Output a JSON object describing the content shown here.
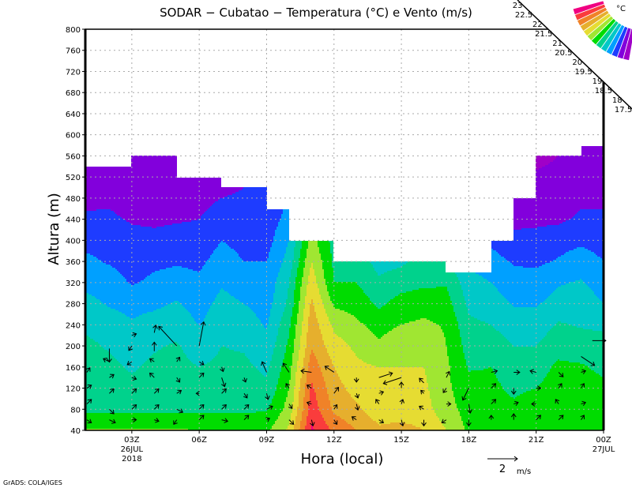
{
  "chart_data": {
    "type": "heatmap",
    "title": "SODAR − Cubatao − Temperatura (°C) e Vento (m/s)",
    "xlabel": "Hora (local)",
    "ylabel": "Altura (m)",
    "xlim_hours": [
      0.93,
      24
    ],
    "ylim": [
      40,
      800
    ],
    "y_ticks": [
      40,
      80,
      120,
      160,
      200,
      240,
      280,
      320,
      360,
      400,
      440,
      480,
      520,
      560,
      600,
      640,
      680,
      720,
      760,
      800
    ],
    "x_ticks": [
      {
        "hour": 3,
        "label": "03Z",
        "sub": [
          "26JUL",
          "2018"
        ]
      },
      {
        "hour": 6,
        "label": "06Z",
        "sub": []
      },
      {
        "hour": 9,
        "label": "09Z",
        "sub": []
      },
      {
        "hour": 12,
        "label": "12Z",
        "sub": []
      },
      {
        "hour": 15,
        "label": "15Z",
        "sub": []
      },
      {
        "hour": 18,
        "label": "18Z",
        "sub": []
      },
      {
        "hour": 21,
        "label": "21Z",
        "sub": []
      },
      {
        "hour": 24,
        "label": "00Z",
        "sub": [
          "27JUL"
        ]
      }
    ],
    "grid": true,
    "units": "°C",
    "levels": [
      17.5,
      18,
      18.5,
      19,
      19.5,
      20,
      20.5,
      21,
      21.5,
      22,
      22.5,
      23
    ],
    "level_labels": [
      "23",
      "22.5",
      "22",
      "21.5",
      "21",
      "20.5",
      "20",
      "19.5",
      "19",
      "18.5",
      "18",
      "17.5"
    ],
    "colors": [
      "#a000c8",
      "#8200dc",
      "#1e3cff",
      "#00a0ff",
      "#00c8c8",
      "#00d28c",
      "#00dc00",
      "#a0e632",
      "#e6dc32",
      "#e6af2d",
      "#f08228",
      "#fa3c3c",
      "#f00082"
    ],
    "heights": [
      40,
      80,
      120,
      160,
      200,
      240,
      280,
      320,
      360,
      400,
      440,
      480,
      520,
      560
    ],
    "hours": [
      1,
      2,
      3,
      4,
      5,
      6,
      7,
      8,
      9,
      10,
      11,
      12,
      13,
      14,
      15,
      16,
      17,
      18,
      19,
      20,
      21,
      22,
      23,
      24
    ],
    "temperature": [
      [
        20.55,
        19.9,
        19.8,
        19.7,
        19.6,
        19.4,
        19.15,
        18.85,
        18.6,
        18.35,
        18.1,
        17.85,
        17.7,
        17.6
      ],
      [
        20.55,
        19.9,
        19.75,
        19.6,
        19.45,
        19.25,
        18.95,
        18.75,
        18.45,
        18.3,
        18.1,
        17.9,
        17.7,
        17.6
      ],
      [
        20.55,
        19.9,
        19.6,
        19.45,
        19.25,
        19.05,
        18.85,
        18.45,
        18.3,
        18.15,
        17.95,
        17.7,
        17.6,
        17.5
      ],
      [
        20.55,
        19.9,
        19.7,
        19.6,
        19.45,
        19.2,
        18.9,
        18.6,
        18.4,
        18.15,
        17.9,
        17.8,
        17.7,
        17.6
      ],
      [
        20.55,
        19.9,
        19.75,
        19.65,
        19.55,
        19.3,
        19.05,
        18.7,
        18.45,
        18.2,
        17.95,
        17.7,
        17.6,
        17.5
      ],
      [
        20.5,
        19.9,
        19.7,
        19.5,
        19.25,
        18.98,
        18.8,
        18.6,
        18.4,
        18.2,
        18.0,
        17.85,
        17.7,
        17.6
      ],
      [
        20.5,
        19.9,
        19.75,
        19.6,
        19.5,
        19.3,
        19.15,
        18.95,
        18.7,
        18.5,
        18.25,
        18.0,
        17.85,
        17.8
      ],
      [
        20.5,
        19.9,
        19.75,
        19.6,
        19.45,
        19.25,
        19.0,
        18.75,
        18.5,
        18.35,
        18.2,
        18.05,
        17.95,
        17.9
      ],
      [
        20.4,
        19.95,
        19.6,
        19.4,
        19.15,
        18.95,
        18.8,
        18.65,
        18.5,
        18.3,
        18.2,
        18.1,
        18.0,
        18.0
      ],
      [
        21.1,
        20.7,
        20.5,
        20.3,
        20.1,
        19.9,
        19.6,
        19.5,
        19.2,
        19.0,
        18.7,
        18.5,
        18.4,
        18.3
      ],
      [
        23.1,
        22.8,
        22.6,
        22.3,
        21.95,
        21.8,
        21.6,
        21.3,
        21.0,
        20.7,
        20.5,
        20.3,
        20.1,
        20.0
      ],
      [
        22.4,
        21.9,
        21.7,
        21.5,
        21.2,
        20.9,
        20.4,
        20.0,
        19.9,
        19.8,
        19.7,
        19.6,
        19.5,
        19.5
      ],
      [
        22.0,
        21.6,
        21.3,
        21.1,
        20.9,
        20.6,
        20.3,
        20.0,
        19.8,
        19.7,
        19.6,
        19.5,
        19.4,
        19.4
      ],
      [
        21.6,
        21.2,
        21.1,
        21.0,
        20.6,
        20.3,
        19.9,
        19.6,
        19.3,
        19.2,
        19.1,
        19.0,
        19.0,
        19.0
      ],
      [
        21.7,
        21.2,
        21.1,
        21.0,
        20.9,
        20.5,
        20.2,
        19.8,
        19.4,
        19.1,
        19.0,
        19.0,
        19.0,
        19.0
      ],
      [
        21.5,
        21.2,
        21.1,
        21.0,
        20.9,
        20.6,
        20.3,
        19.9,
        19.7,
        19.5,
        19.3,
        19.2,
        19.1,
        19.0
      ],
      [
        21.0,
        20.7,
        20.6,
        20.6,
        20.5,
        20.45,
        20.2,
        19.95,
        19.6,
        19.3,
        19.1,
        19.0,
        18.9,
        18.8
      ],
      [
        20.4,
        20.3,
        20.2,
        19.95,
        19.8,
        19.6,
        19.4,
        19.2,
        18.9,
        18.5,
        18.3,
        18.1,
        18.0,
        17.9
      ],
      [
        20.3,
        20.2,
        20.1,
        20.0,
        19.7,
        19.5,
        19.25,
        19.0,
        18.7,
        18.4,
        18.0,
        17.8,
        17.6,
        17.5
      ],
      [
        20.4,
        20.1,
        19.9,
        19.8,
        19.5,
        19.3,
        18.95,
        18.7,
        18.45,
        18.1,
        17.9,
        17.7,
        17.5,
        17.4
      ],
      [
        20.5,
        20.3,
        20.0,
        19.8,
        19.5,
        19.25,
        18.95,
        18.7,
        18.4,
        18.15,
        17.9,
        17.75,
        17.55,
        17.4
      ],
      [
        20.5,
        20.3,
        20.2,
        20.1,
        19.8,
        19.55,
        19.2,
        18.95,
        18.55,
        18.3,
        17.9,
        17.7,
        17.6,
        17.5
      ],
      [
        20.5,
        20.3,
        20.2,
        20.05,
        19.75,
        19.45,
        19.3,
        19.05,
        18.75,
        18.4,
        18.1,
        17.9,
        17.7,
        17.6
      ],
      [
        20.4,
        20.2,
        20.1,
        19.9,
        19.7,
        19.4,
        19.0,
        18.75,
        18.5,
        18.3,
        18.1,
        17.9,
        17.7,
        17.6
      ]
    ],
    "data_top_by_hour_block": [
      540,
      540,
      560,
      560,
      520,
      520,
      500,
      500,
      460,
      400,
      400,
      360,
      360,
      360,
      360,
      360,
      340,
      340,
      400,
      480,
      560,
      560,
      580
    ],
    "wind_vectors_hour_height_u_v": [
      [
        1,
        60,
        0.3,
        -0.2
      ],
      [
        1,
        90,
        0.3,
        0.3
      ],
      [
        1,
        120,
        0.3,
        0.2
      ],
      [
        1,
        150,
        0.2,
        0.3
      ],
      [
        2,
        60,
        0.4,
        -0.2
      ],
      [
        2,
        80,
        0.3,
        -0.3
      ],
      [
        2,
        110,
        0.3,
        0.3
      ],
      [
        2,
        140,
        0.3,
        0.2
      ],
      [
        2,
        170,
        -0.4,
        0.2
      ],
      [
        2,
        195,
        0,
        -0.9
      ],
      [
        3,
        60,
        0.3,
        0
      ],
      [
        3,
        80,
        0.3,
        0.3
      ],
      [
        3,
        110,
        0.3,
        0.3
      ],
      [
        3,
        140,
        0.3,
        -0.1
      ],
      [
        3,
        170,
        -0.3,
        -0.2
      ],
      [
        3,
        200,
        -0.2,
        -0.3
      ],
      [
        3,
        220,
        0.3,
        0.1
      ],
      [
        4,
        60,
        0.3,
        -0.1
      ],
      [
        4,
        80,
        0.3,
        0.3
      ],
      [
        4,
        110,
        0.3,
        0.3
      ],
      [
        4,
        140,
        -0.3,
        0.3
      ],
      [
        4,
        170,
        -0.3,
        0.2
      ],
      [
        4,
        190,
        0,
        0.6
      ],
      [
        4,
        225,
        0.1,
        0.5
      ],
      [
        5,
        60,
        -0.2,
        -0.3
      ],
      [
        5,
        80,
        0.4,
        -0.2
      ],
      [
        5,
        110,
        0.3,
        0.2
      ],
      [
        5,
        140,
        0.2,
        -0.3
      ],
      [
        5,
        170,
        0.2,
        0.3
      ],
      [
        5,
        200,
        -1.2,
        1.3
      ],
      [
        6,
        60,
        0.3,
        0.3
      ],
      [
        6,
        80,
        0.3,
        0.3
      ],
      [
        6,
        110,
        -0.2,
        0
      ],
      [
        6,
        140,
        0.3,
        0.3
      ],
      [
        6,
        170,
        0.3,
        -0.2
      ],
      [
        6,
        200,
        0.3,
        1.6
      ],
      [
        7,
        60,
        0.4,
        -0.1
      ],
      [
        7,
        80,
        0.3,
        0.3
      ],
      [
        7,
        110,
        0.3,
        0.3
      ],
      [
        7,
        140,
        0.2,
        -0.6
      ],
      [
        7,
        160,
        0.1,
        -0.3
      ],
      [
        8,
        60,
        0.3,
        0.3
      ],
      [
        8,
        80,
        0.3,
        0.3
      ],
      [
        8,
        110,
        0.2,
        -0.3
      ],
      [
        8,
        140,
        0.1,
        -0.3
      ],
      [
        9,
        60,
        0.2,
        0.1
      ],
      [
        9,
        80,
        0.4,
        0.2
      ],
      [
        9,
        110,
        0.1,
        -0.4
      ],
      [
        9,
        150,
        -0.3,
        0.7
      ],
      [
        10,
        60,
        0.3,
        -0.3
      ],
      [
        10,
        90,
        0.2,
        -0.3
      ],
      [
        10,
        120,
        -0.2,
        0.3
      ],
      [
        10,
        150,
        -0.4,
        0.6
      ],
      [
        11,
        60,
        0.1,
        -0.4
      ],
      [
        11,
        90,
        -0.3,
        0.1
      ],
      [
        11,
        120,
        -0.3,
        0.2
      ],
      [
        11,
        150,
        -0.7,
        0.1
      ],
      [
        12,
        60,
        0.2,
        -0.3
      ],
      [
        12,
        80,
        0.2,
        0.3
      ],
      [
        12,
        110,
        0.3,
        0.4
      ],
      [
        12,
        150,
        -0.6,
        0.4
      ],
      [
        13,
        60,
        -0.3,
        0.2
      ],
      [
        13,
        90,
        0.1,
        -0.4
      ],
      [
        13,
        110,
        0.1,
        -0.3
      ],
      [
        13,
        140,
        0,
        -0.3
      ],
      [
        14,
        60,
        0.3,
        -0.2
      ],
      [
        14,
        90,
        -0.2,
        0.3
      ],
      [
        14,
        110,
        0.3,
        0.1
      ],
      [
        14,
        140,
        0.9,
        0.3
      ],
      [
        15,
        60,
        0.1,
        -0.4
      ],
      [
        15,
        90,
        0.1,
        0.3
      ],
      [
        15,
        120,
        0,
        0.4
      ],
      [
        15,
        140,
        -1.2,
        -0.4
      ],
      [
        16,
        60,
        0,
        -0.4
      ],
      [
        16,
        80,
        -0.3,
        0.2
      ],
      [
        16,
        110,
        -0.2,
        0.2
      ],
      [
        16,
        130,
        -0.3,
        0.3
      ],
      [
        17,
        60,
        -0.3,
        -0.2
      ],
      [
        17,
        90,
        0.3,
        0
      ],
      [
        17,
        120,
        -0.2,
        -0.3
      ],
      [
        17,
        140,
        0.2,
        0.4
      ],
      [
        18,
        60,
        0,
        -0.4
      ],
      [
        18,
        90,
        0.1,
        -0.6
      ],
      [
        18,
        120,
        -0.4,
        -0.8
      ],
      [
        19,
        60,
        0,
        0.3
      ],
      [
        19,
        90,
        0.3,
        0.3
      ],
      [
        19,
        120,
        0.3,
        0.3
      ],
      [
        19,
        150,
        0.4,
        0.1
      ],
      [
        20,
        60,
        0,
        0.4
      ],
      [
        20,
        90,
        0.3,
        0.1
      ],
      [
        20,
        120,
        0,
        -0.4
      ],
      [
        20,
        150,
        0.4,
        0
      ],
      [
        21,
        60,
        0.3,
        0.3
      ],
      [
        21,
        90,
        -0.3,
        0
      ],
      [
        21,
        120,
        0.3,
        0
      ],
      [
        21,
        150,
        -0.4,
        0.1
      ],
      [
        22,
        60,
        0.3,
        0.3
      ],
      [
        22,
        90,
        -0.2,
        0.3
      ],
      [
        22,
        120,
        0.2,
        0.3
      ],
      [
        22,
        150,
        0.3,
        -0.3
      ],
      [
        23,
        60,
        0.2,
        0.3
      ],
      [
        23,
        90,
        0.3,
        0.1
      ],
      [
        23,
        120,
        0.2,
        0.3
      ],
      [
        23,
        150,
        0.3,
        0.1
      ],
      [
        23,
        180,
        0.9,
        -0.6
      ],
      [
        23.5,
        210,
        0.9,
        0
      ]
    ],
    "reference_vector": {
      "value": 2,
      "label": "2",
      "units": "m/s"
    }
  },
  "credit": "GrADS: COLA/IGES"
}
